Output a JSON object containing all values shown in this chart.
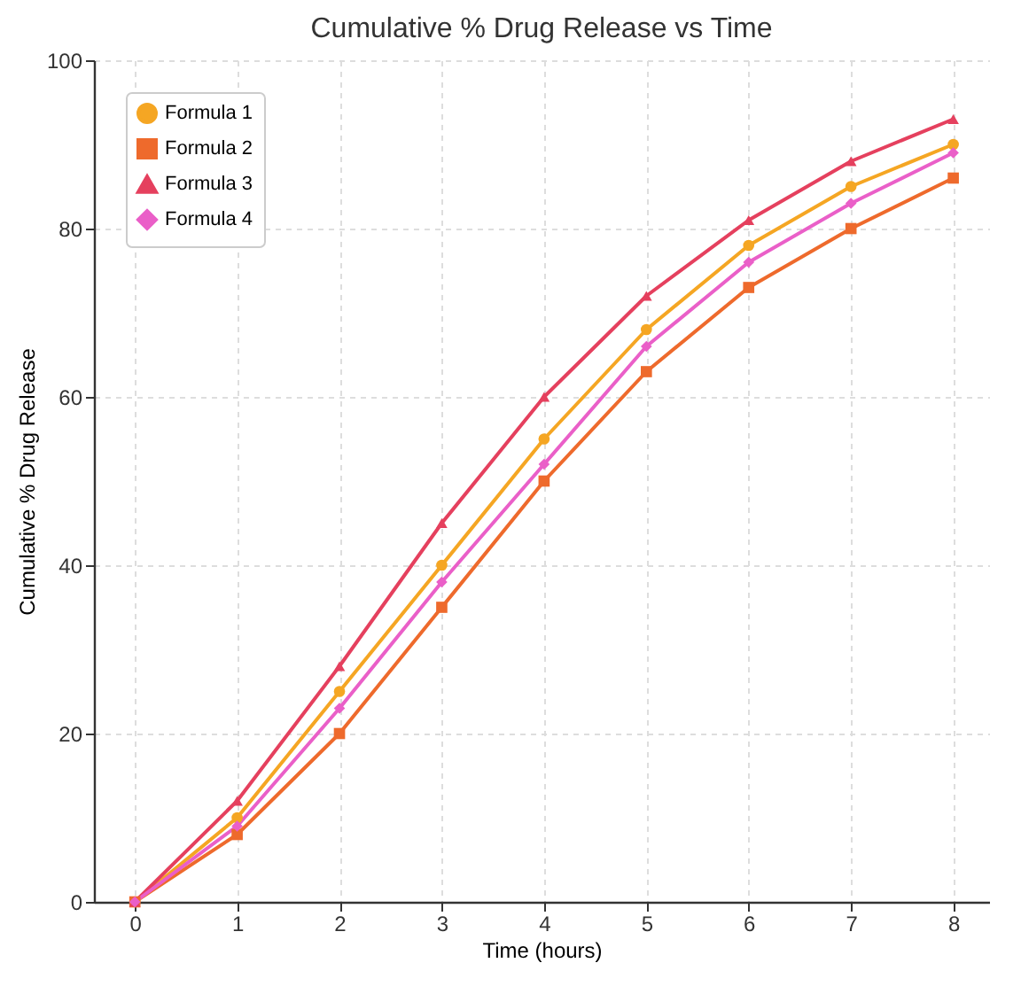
{
  "chart_data": {
    "type": "line",
    "title": "Cumulative % Drug Release vs Time",
    "xlabel": "Time (hours)",
    "ylabel": "Cumulative % Drug Release",
    "x": [
      0,
      1,
      2,
      3,
      4,
      5,
      6,
      7,
      8
    ],
    "series": [
      {
        "name": "Formula 1",
        "color": "#f5a623",
        "marker": "circle",
        "values": [
          0,
          10,
          25,
          40,
          55,
          68,
          78,
          85,
          90
        ]
      },
      {
        "name": "Formula 2",
        "color": "#ee6a2c",
        "marker": "square",
        "values": [
          0,
          8,
          20,
          35,
          50,
          63,
          73,
          80,
          86
        ]
      },
      {
        "name": "Formula 3",
        "color": "#e5405e",
        "marker": "triangle",
        "values": [
          0,
          12,
          28,
          45,
          60,
          72,
          81,
          88,
          93
        ]
      },
      {
        "name": "Formula 4",
        "color": "#ea5fc8",
        "marker": "diamond",
        "values": [
          0,
          9,
          23,
          38,
          52,
          66,
          76,
          83,
          89
        ]
      }
    ],
    "xlim": [
      -0.4,
      8.35
    ],
    "xticks": [
      0,
      1,
      2,
      3,
      4,
      5,
      6,
      7,
      8
    ],
    "ylim": [
      0,
      100
    ],
    "yticks": [
      0,
      20,
      40,
      60,
      80,
      100
    ],
    "grid": true,
    "legend": "top left",
    "line_style": "solid"
  }
}
